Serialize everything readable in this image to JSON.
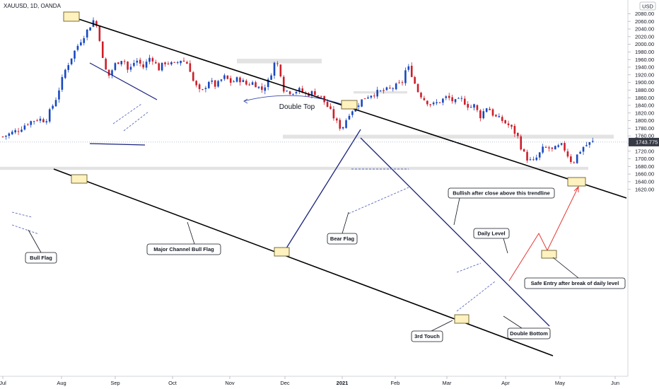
{
  "header": {
    "title": "XAUUSD, 1D, OANDA",
    "currency": "USD"
  },
  "chart_data": {
    "type": "candlestick",
    "symbol": "XAUUSD",
    "timeframe": "1D",
    "source": "OANDA",
    "ylim": [
      1605,
      2090
    ],
    "y_ticks": [
      2080,
      2060,
      2040,
      2020,
      2000,
      1980,
      1960,
      1940,
      1920,
      1900,
      1880,
      1860,
      1840,
      1820,
      1800,
      1780,
      1760,
      1740,
      1720,
      1700,
      1680,
      1660,
      1640,
      1620
    ],
    "x_ticks": [
      "Jul",
      "Aug",
      "Sep",
      "Oct",
      "Nov",
      "Dec",
      "2021",
      "Feb",
      "Mar",
      "Apr",
      "May",
      "Jun"
    ],
    "last_price": "1743.775",
    "candle_count": 190,
    "price_path": [
      [
        0,
        1758
      ],
      [
        6,
        1775
      ],
      [
        10,
        1795
      ],
      [
        14,
        1805
      ],
      [
        17,
        1800
      ],
      [
        21,
        1855
      ],
      [
        25,
        1935
      ],
      [
        28,
        1975
      ],
      [
        31,
        2010
      ],
      [
        34,
        2040
      ],
      [
        36,
        2063
      ],
      [
        38,
        2040
      ],
      [
        40,
        1950
      ],
      [
        42,
        1915
      ],
      [
        45,
        1950
      ],
      [
        48,
        1965
      ],
      [
        50,
        1928
      ],
      [
        53,
        1960
      ],
      [
        56,
        1940
      ],
      [
        59,
        1970
      ],
      [
        62,
        1935
      ],
      [
        65,
        1955
      ],
      [
        68,
        1945
      ],
      [
        71,
        1960
      ],
      [
        74,
        1948
      ],
      [
        76,
        1900
      ],
      [
        79,
        1870
      ],
      [
        82,
        1905
      ],
      [
        85,
        1890
      ],
      [
        88,
        1915
      ],
      [
        91,
        1900
      ],
      [
        94,
        1910
      ],
      [
        97,
        1895
      ],
      [
        100,
        1900
      ],
      [
        103,
        1880
      ],
      [
        106,
        1905
      ],
      [
        108,
        1950
      ],
      [
        110,
        1945
      ],
      [
        112,
        1880
      ],
      [
        115,
        1875
      ],
      [
        118,
        1880
      ],
      [
        121,
        1868
      ],
      [
        124,
        1875
      ],
      [
        127,
        1860
      ],
      [
        130,
        1830
      ],
      [
        133,
        1795
      ],
      [
        135,
        1778
      ],
      [
        138,
        1820
      ],
      [
        141,
        1840
      ],
      [
        144,
        1860
      ],
      [
        147,
        1870
      ],
      [
        150,
        1875
      ],
      [
        153,
        1880
      ],
      [
        156,
        1888
      ],
      [
        159,
        1898
      ],
      [
        161,
        1945
      ],
      [
        163,
        1920
      ],
      [
        165,
        1880
      ],
      [
        168,
        1855
      ],
      [
        171,
        1840
      ],
      [
        174,
        1850
      ],
      [
        177,
        1862
      ],
      [
        180,
        1848
      ],
      [
        183,
        1855
      ],
      [
        186,
        1835
      ],
      [
        188,
        1840
      ],
      [
        190,
        1810
      ],
      [
        193,
        1838
      ],
      [
        196,
        1810
      ],
      [
        199,
        1800
      ],
      [
        202,
        1785
      ],
      [
        205,
        1760
      ],
      [
        207,
        1720
      ],
      [
        209,
        1700
      ],
      [
        211,
        1690
      ],
      [
        213,
        1705
      ],
      [
        215,
        1725
      ],
      [
        217,
        1730
      ],
      [
        219,
        1722
      ],
      [
        221,
        1730
      ],
      [
        223,
        1735
      ],
      [
        225,
        1710
      ],
      [
        227,
        1688
      ],
      [
        229,
        1712
      ],
      [
        231,
        1730
      ],
      [
        233,
        1738
      ],
      [
        235,
        1744
      ]
    ],
    "annotations": {
      "double_top": "Double Top",
      "bull_flag": "Bull Flag",
      "major_channel": "Major Channel Bull Flag",
      "bear_flag": "Bear Flag",
      "bullish_trendline": "Bullish after close above this trendline",
      "daily_level": "Daily Level",
      "safe_entry": "Safe Entry after break of daily level",
      "third_touch": "3rd Touch",
      "double_bottom": "Double Bottom"
    },
    "colors": {
      "up": "#1848c0",
      "down": "#cc1f2a",
      "channel": "#000000",
      "trendline": "#1a237e",
      "touch_box_fill": "#fff2bf",
      "touch_box_stroke": "#6b5e2a",
      "projection": "#e53935",
      "level_band": "#e3e3e3"
    }
  }
}
